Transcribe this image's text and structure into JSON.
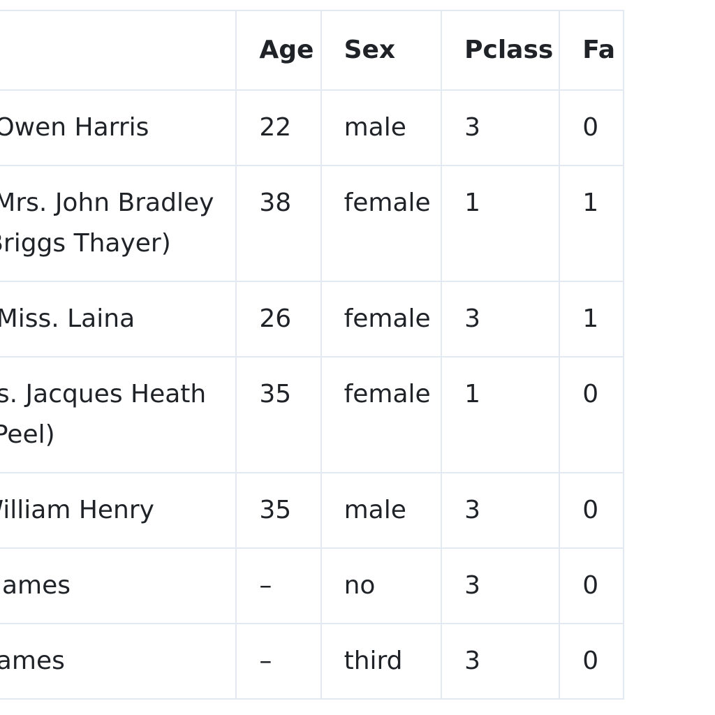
{
  "table": {
    "headers": {
      "name": "",
      "age": "Age",
      "sex": "Sex",
      "pclass": "Pclass",
      "fare": "Fa"
    },
    "rows": [
      {
        "name_line1": ", Mr. Owen Harris",
        "name_line2": "",
        "age": "22",
        "sex": "male",
        "pclass": "3",
        "fare": "0"
      },
      {
        "name_line1": "ngs, Mrs. John Bradley",
        "name_line2": "nce Briggs Thayer)",
        "age": "38",
        "sex": "female",
        "pclass": "1",
        "fare": "1"
      },
      {
        "name_line1": "nen, Miss. Laina",
        "name_line2": "",
        "age": "26",
        "sex": "female",
        "pclass": "3",
        "fare": "1"
      },
      {
        "name_line1": "e, Mrs. Jacques Heath",
        "name_line2": "May Peel)",
        "age": "35",
        "sex": "female",
        "pclass": "1",
        "fare": "0"
      },
      {
        "name_line1": "Mr. William Henry",
        "name_line2": "",
        "age": "35",
        "sex": "male",
        "pclass": "3",
        "fare": "0"
      },
      {
        "name_line1": ", Mr. James",
        "name_line2": "",
        "age": "–",
        "sex": "no",
        "pclass": "3",
        "fare": "0"
      },
      {
        "name_line1": ", Mr James",
        "name_line2": "",
        "age": "–",
        "sex": "third",
        "pclass": "3",
        "fare": "0"
      }
    ]
  }
}
